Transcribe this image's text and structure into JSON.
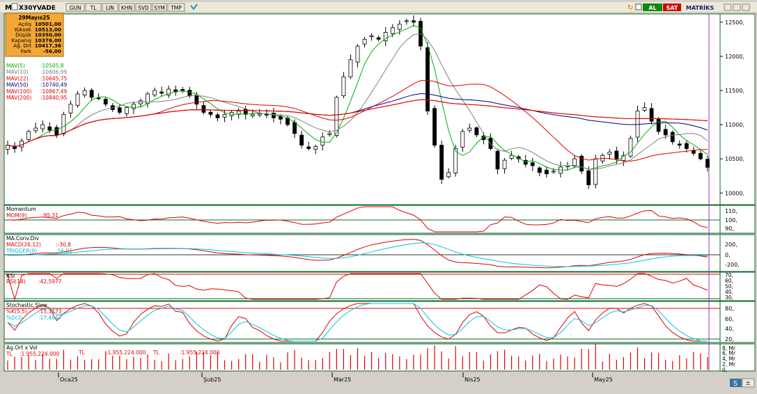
{
  "toolbar": {
    "symbol": "X30YVADE",
    "buttons": [
      {
        "name": "period-gun",
        "label": "GUN"
      },
      {
        "name": "currency-tl",
        "label": "TL"
      },
      {
        "name": "scale-lin",
        "label": "LIN"
      },
      {
        "name": "khn",
        "label": "KHN"
      },
      {
        "name": "svd",
        "label": "SVD"
      },
      {
        "name": "sym",
        "label": "SYM"
      },
      {
        "name": "tmp",
        "label": "TMP"
      }
    ],
    "buy_label": "AL",
    "sell_label": "SAT",
    "brand": "MATRİKS"
  },
  "info_box": {
    "date": "29Mayıs25",
    "rows": [
      {
        "label": "Açılış",
        "value": "10501,00"
      },
      {
        "label": "Yüksek",
        "value": "10513,00"
      },
      {
        "label": "Düşük",
        "value": "10350,00"
      },
      {
        "label": "Kapanış",
        "value": "10376,00"
      },
      {
        "label": "Ağ. Ort",
        "value": "10417,36"
      },
      {
        "label": "Fark",
        "value": "-56,00"
      }
    ]
  },
  "legend": [
    {
      "label": "MAV(5)",
      "value": ":10505,8",
      "color": "#00b000"
    },
    {
      "label": "MAV(10)",
      "value": ":10606,99",
      "color": "#808080"
    },
    {
      "label": "MAV(22)",
      "value": ":10645,75",
      "color": "#e00000"
    },
    {
      "label": "MAV(50)",
      "value": ":10740,49",
      "color": "#000080"
    },
    {
      "label": "MAV(100)",
      "value": ":10867,49",
      "color": "#e00000"
    },
    {
      "label": "MAV(200)",
      "value": ":10840,95",
      "color": "#e00000"
    }
  ],
  "price_axis": [
    "12500,",
    "12000,",
    "11500,",
    "11000,",
    "10500,",
    "10000,"
  ],
  "indicators": {
    "momentum": {
      "title": "Momentum",
      "label": "MOM(9)",
      "value": ":95,31",
      "axis": [
        "110,",
        "100,",
        "90,"
      ]
    },
    "macd": {
      "title": "MA.Conv.Div",
      "label1": "MACD(26,12)",
      "value1": ":-30,8",
      "label2": "TRIGGER(9)",
      "value2": ":16,91",
      "axis": [
        "200,",
        "0,",
        "-200,"
      ]
    },
    "rsi": {
      "title": "RSI",
      "label": "RSI(14)",
      "value": ":42,5977",
      "axis": [
        "70,",
        "60,",
        "50,",
        "40,",
        "30,"
      ]
    },
    "stochastic": {
      "title": "Stochastic,Slow",
      "label1": "%K(5,5)",
      "value1": ":15,1173",
      "label2": "%D(3)",
      "value2": ":17,4947",
      "axis": [
        "80,",
        "60,",
        "40,",
        "20,"
      ]
    },
    "volume": {
      "title": "Ag.Ort x Vol",
      "currency": "TL",
      "value": ":1.955.224.000",
      "axis": [
        "8, Mr",
        "6, Mr",
        "4, Mr",
        "2, Mr",
        "0,"
      ]
    }
  },
  "date_axis": [
    "Oca25",
    "Şub25",
    "Mar25",
    "Nis25",
    "May25"
  ],
  "chart_data": {
    "type": "candlestick",
    "title": "X30YVADE",
    "x_ticks": [
      "Oca25",
      "Şub25",
      "Mar25",
      "Nis25",
      "May25"
    ],
    "ylim": [
      9850,
      12600
    ],
    "last_candle": {
      "date": "29Mayıs25",
      "open": 10501,
      "high": 10513,
      "low": 10350,
      "close": 10376
    },
    "series": [
      {
        "name": "MAV(5)",
        "last": 10505.8
      },
      {
        "name": "MAV(10)",
        "last": 10606.99
      },
      {
        "name": "MAV(22)",
        "last": 10645.75
      },
      {
        "name": "MAV(50)",
        "last": 10740.49
      },
      {
        "name": "MAV(100)",
        "last": 10867.49
      },
      {
        "name": "MAV(200)",
        "last": 10840.95
      }
    ],
    "closes": [
      10700,
      10650,
      10760,
      10900,
      10950,
      11000,
      10920,
      10850,
      11150,
      11300,
      11450,
      11500,
      11400,
      11380,
      11300,
      11220,
      11180,
      11250,
      11300,
      11350,
      11450,
      11500,
      11460,
      11520,
      11480,
      11500,
      11420,
      11300,
      11180,
      11150,
      11100,
      11150,
      11180,
      11200,
      11150,
      11150,
      11160,
      11140,
      11100,
      11080,
      11000,
      10870,
      10700,
      10650,
      10680,
      10820,
      10870,
      11400,
      11700,
      11950,
      12150,
      12250,
      12300,
      12250,
      12350,
      12420,
      12470,
      12520,
      12500,
      12150,
      11200,
      10700,
      10200,
      10300,
      10650,
      10900,
      10950,
      10850,
      10780,
      10650,
      10350,
      10480,
      10550,
      10500,
      10420,
      10400,
      10300,
      10280,
      10320,
      10380,
      10400,
      10500,
      10320,
      10120,
      10500,
      10550,
      10600,
      10500,
      10550,
      10800,
      11200,
      11250,
      11050,
      10900,
      10850,
      10750,
      10700,
      10650,
      10580,
      10500,
      10376
    ],
    "indicators": {
      "MOM(9)": 95.31,
      "MACD(26,12)": -30.8,
      "TRIGGER(9)": 16.91,
      "RSI(14)": 42.5977,
      "%K(5,5)": 15.1173,
      "%D(3)": 17.4947,
      "Ag.Ort x Vol": 1955224000
    }
  }
}
